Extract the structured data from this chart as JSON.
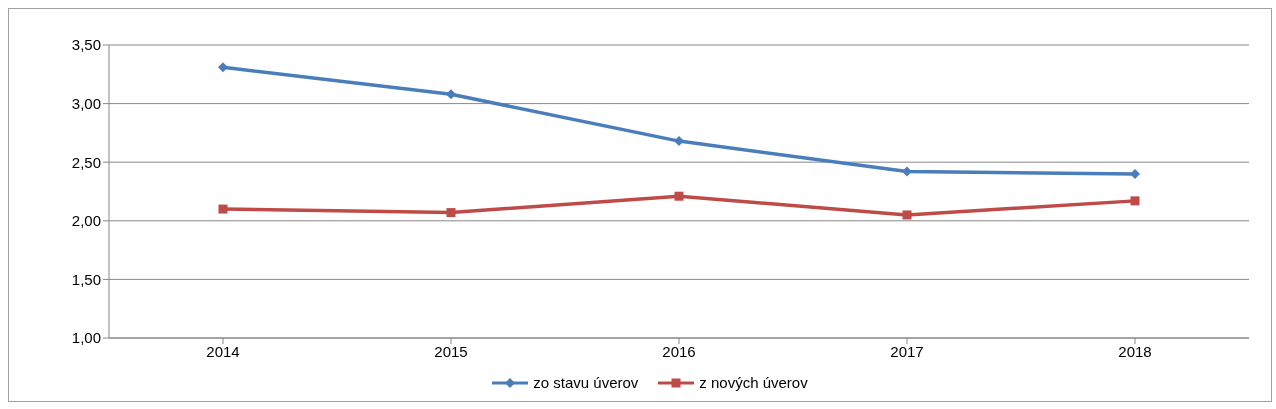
{
  "chart_data": {
    "type": "line",
    "categories": [
      "2014",
      "2015",
      "2016",
      "2017",
      "2018"
    ],
    "series": [
      {
        "name": "zo stavu úverov",
        "color": "#4a7ebb",
        "marker": "diamond",
        "values": [
          3.31,
          3.08,
          2.68,
          2.42,
          2.4
        ]
      },
      {
        "name": "z nových úverov",
        "color": "#be4b48",
        "marker": "square",
        "values": [
          2.1,
          2.07,
          2.21,
          2.05,
          2.17
        ]
      }
    ],
    "ylim": [
      1,
      3.5
    ],
    "yticks": [
      {
        "value": 1,
        "label": "1,00"
      },
      {
        "value": 1.5,
        "label": "1,50"
      },
      {
        "value": 2,
        "label": "2,00"
      },
      {
        "value": 2.5,
        "label": "2,50"
      },
      {
        "value": 3,
        "label": "3,00"
      },
      {
        "value": 3.5,
        "label": "3,50"
      }
    ],
    "grid": "y",
    "legend": "bottom",
    "line_style": "solid"
  }
}
